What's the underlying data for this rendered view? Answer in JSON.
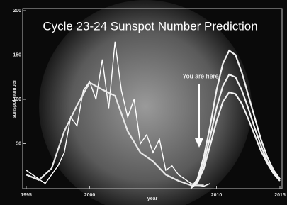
{
  "chart_data": {
    "type": "line",
    "title": "Cycle 23-24 Sunspot Number Prediction",
    "xlabel": "year",
    "ylabel": "sunspot number",
    "annotation": "You are here",
    "xlim": [
      1995,
      2015
    ],
    "xticks": [
      1995,
      2000,
      2010,
      2015
    ],
    "ylim": [
      0,
      200
    ],
    "yticks": [
      50,
      100,
      150,
      200
    ],
    "series": [
      {
        "color": "#ffffff",
        "x": [
          1995,
          1995.5,
          1996,
          1996.5,
          1997,
          1997.5,
          1998,
          1998.5,
          1999,
          1999.5,
          2000,
          2000.5,
          2001,
          2001.5,
          2002,
          2002.5,
          2003,
          2003.5,
          2004,
          2004.5,
          2005,
          2005.5,
          2006,
          2006.5,
          2007,
          2007.5,
          2008,
          2008.5,
          2009,
          2009.5
        ],
        "values": [
          20,
          15,
          10,
          5,
          15,
          25,
          40,
          80,
          70,
          110,
          120,
          100,
          145,
          90,
          165,
          110,
          80,
          100,
          50,
          60,
          40,
          55,
          20,
          25,
          15,
          10,
          5,
          3,
          2,
          5
        ]
      },
      {
        "color": "#e8e8e8",
        "x": [
          1995,
          1996,
          1997,
          1998,
          1999,
          2000,
          2001,
          2002,
          2003,
          2004,
          2005,
          2006,
          2007,
          2008,
          2009
        ],
        "values": [
          15,
          9,
          22,
          64,
          93,
          119,
          111,
          104,
          64,
          40,
          30,
          15,
          8,
          3,
          3
        ]
      },
      {
        "color": "#f2f2f2",
        "x": [
          2008,
          2008.5,
          2009,
          2009.5,
          2010,
          2010.5,
          2011,
          2011.5,
          2012,
          2012.5,
          2013,
          2013.5,
          2014,
          2014.5,
          2015
        ],
        "values": [
          0,
          10,
          35,
          70,
          110,
          140,
          155,
          150,
          130,
          105,
          80,
          55,
          35,
          20,
          10
        ]
      },
      {
        "color": "#f2f2f2",
        "x": [
          2008,
          2008.5,
          2009,
          2009.5,
          2010,
          2010.5,
          2011,
          2011.5,
          2012,
          2012.5,
          2013,
          2013.5,
          2014,
          2014.5,
          2015
        ],
        "values": [
          0,
          8,
          28,
          58,
          90,
          115,
          128,
          125,
          110,
          90,
          68,
          48,
          30,
          18,
          10
        ]
      },
      {
        "color": "#f2f2f2",
        "x": [
          2008,
          2008.5,
          2009,
          2009.5,
          2010,
          2010.5,
          2011,
          2011.5,
          2012,
          2012.5,
          2013,
          2013.5,
          2014,
          2014.5,
          2015
        ],
        "values": [
          0,
          6,
          22,
          48,
          75,
          97,
          108,
          106,
          95,
          78,
          60,
          42,
          28,
          16,
          8
        ]
      }
    ]
  }
}
